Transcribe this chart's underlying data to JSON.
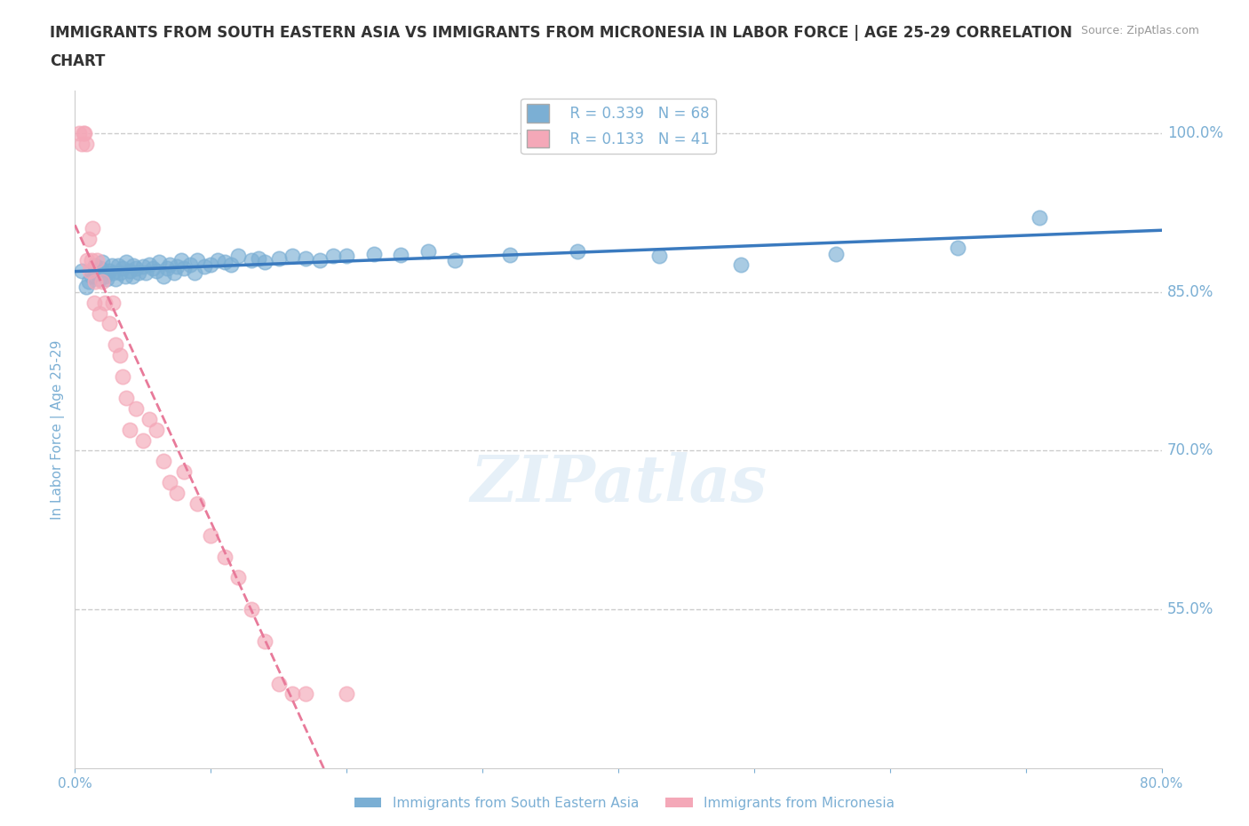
{
  "title": "IMMIGRANTS FROM SOUTH EASTERN ASIA VS IMMIGRANTS FROM MICRONESIA IN LABOR FORCE | AGE 25-29 CORRELATION\nCHART",
  "source_text": "Source: ZipAtlas.com",
  "xlabel": "",
  "ylabel": "In Labor Force | Age 25-29",
  "xlim": [
    0.0,
    0.8
  ],
  "ylim": [
    0.4,
    1.04
  ],
  "xtick_labels": [
    "0.0%",
    "",
    "",
    "",
    "",
    "",
    "",
    "",
    "80.0%"
  ],
  "xtick_values": [
    0.0,
    0.1,
    0.2,
    0.3,
    0.4,
    0.5,
    0.6,
    0.7,
    0.8
  ],
  "ytick_labels": [
    "100.0%",
    "85.0%",
    "70.0%",
    "55.0%"
  ],
  "ytick_values": [
    1.0,
    0.85,
    0.7,
    0.55
  ],
  "grid_color": "#cccccc",
  "background_color": "#ffffff",
  "blue_color": "#7bafd4",
  "pink_color": "#f4a8b8",
  "blue_line_color": "#3a7abf",
  "pink_line_color": "#e87a9a",
  "title_color": "#333333",
  "axis_label_color": "#7bafd4",
  "legend_R_blue": "R = 0.339",
  "legend_N_blue": "N = 68",
  "legend_R_pink": "R = 0.133",
  "legend_N_pink": "N = 41",
  "watermark": "ZIPatlas",
  "blue_x": [
    0.005,
    0.008,
    0.01,
    0.012,
    0.015,
    0.015,
    0.016,
    0.018,
    0.019,
    0.02,
    0.022,
    0.023,
    0.025,
    0.027,
    0.028,
    0.03,
    0.032,
    0.033,
    0.035,
    0.037,
    0.038,
    0.04,
    0.042,
    0.043,
    0.045,
    0.047,
    0.05,
    0.052,
    0.055,
    0.057,
    0.06,
    0.062,
    0.065,
    0.068,
    0.07,
    0.073,
    0.075,
    0.078,
    0.08,
    0.085,
    0.088,
    0.09,
    0.095,
    0.1,
    0.105,
    0.11,
    0.115,
    0.12,
    0.13,
    0.135,
    0.14,
    0.15,
    0.16,
    0.17,
    0.18,
    0.19,
    0.2,
    0.22,
    0.24,
    0.26,
    0.28,
    0.32,
    0.37,
    0.43,
    0.49,
    0.56,
    0.65,
    0.71
  ],
  "blue_y": [
    0.87,
    0.855,
    0.86,
    0.865,
    0.87,
    0.875,
    0.868,
    0.862,
    0.872,
    0.878,
    0.865,
    0.862,
    0.87,
    0.875,
    0.868,
    0.862,
    0.875,
    0.868,
    0.872,
    0.865,
    0.878,
    0.87,
    0.865,
    0.875,
    0.872,
    0.868,
    0.874,
    0.868,
    0.876,
    0.872,
    0.87,
    0.878,
    0.865,
    0.872,
    0.876,
    0.868,
    0.874,
    0.88,
    0.872,
    0.876,
    0.868,
    0.88,
    0.874,
    0.876,
    0.88,
    0.878,
    0.876,
    0.884,
    0.88,
    0.882,
    0.878,
    0.882,
    0.884,
    0.882,
    0.88,
    0.884,
    0.884,
    0.886,
    0.885,
    0.888,
    0.88,
    0.885,
    0.888,
    0.884,
    0.876,
    0.886,
    0.892,
    0.92
  ],
  "pink_x": [
    0.003,
    0.005,
    0.006,
    0.007,
    0.008,
    0.009,
    0.01,
    0.011,
    0.012,
    0.013,
    0.014,
    0.015,
    0.016,
    0.018,
    0.02,
    0.022,
    0.025,
    0.028,
    0.03,
    0.033,
    0.035,
    0.038,
    0.04,
    0.045,
    0.05,
    0.055,
    0.06,
    0.065,
    0.07,
    0.075,
    0.08,
    0.09,
    0.1,
    0.11,
    0.12,
    0.13,
    0.14,
    0.15,
    0.16,
    0.17,
    0.2
  ],
  "pink_y": [
    1.0,
    0.99,
    1.0,
    1.0,
    0.99,
    0.88,
    0.9,
    0.87,
    0.88,
    0.91,
    0.84,
    0.86,
    0.88,
    0.83,
    0.86,
    0.84,
    0.82,
    0.84,
    0.8,
    0.79,
    0.77,
    0.75,
    0.72,
    0.74,
    0.71,
    0.73,
    0.72,
    0.69,
    0.67,
    0.66,
    0.68,
    0.65,
    0.62,
    0.6,
    0.58,
    0.55,
    0.52,
    0.48,
    0.47,
    0.47,
    0.47
  ]
}
